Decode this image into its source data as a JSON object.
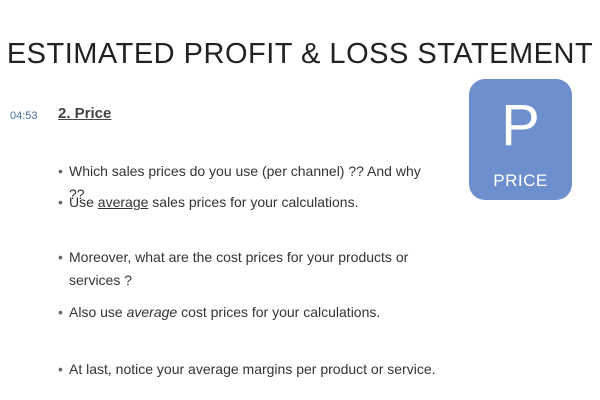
{
  "slide": {
    "title": "ESTIMATED PROFIT & LOSS STATEMENT",
    "timestamp": "04:53",
    "subtitle": "2. Price"
  },
  "badge": {
    "letter": "P",
    "word": "PRICE",
    "color": "#6e8fcd"
  },
  "bullets": {
    "b1": "Which sales prices do you use (per channel) ?? And why ??",
    "b2_pre": "Use ",
    "b2_em": "average",
    "b2_post": " sales prices for your calculations.",
    "b3": "Moreover, what are the cost prices for your products or services ?",
    "b4_pre": "Also use ",
    "b4_em": "average",
    "b4_post": " cost prices for your calculations.",
    "b5": "At last, notice your average margins per product or service."
  }
}
